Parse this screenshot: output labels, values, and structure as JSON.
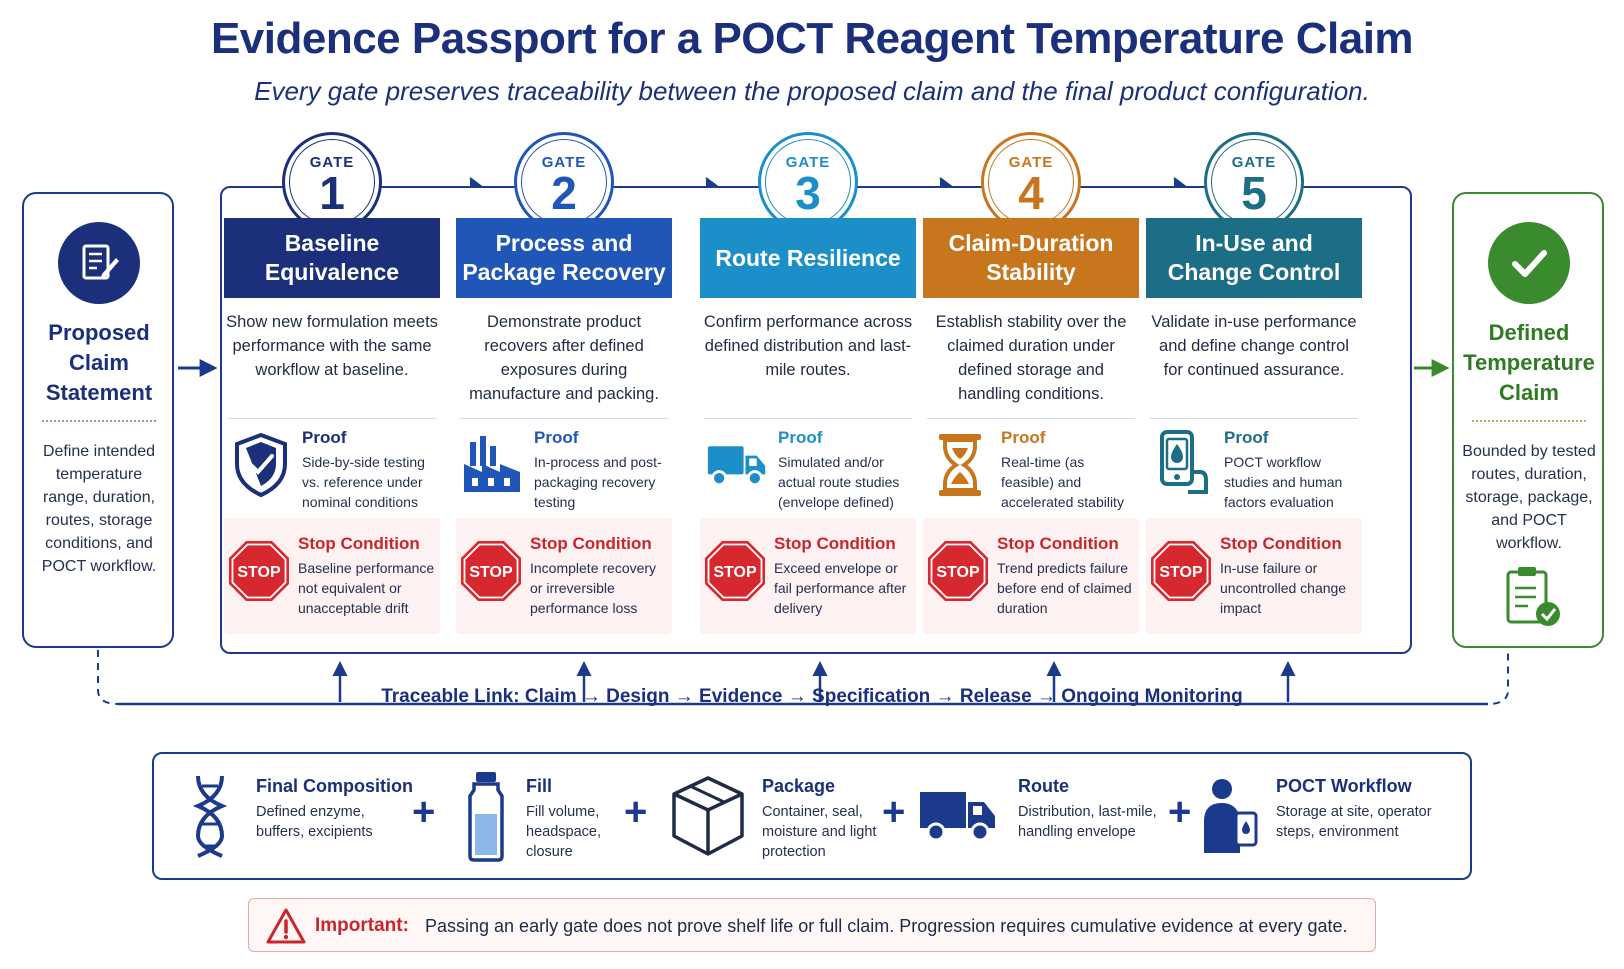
{
  "title": "Evidence Passport for a POCT Reagent Temperature Claim",
  "subtitle": "Every gate preserves traceability between the proposed claim and the final product configuration.",
  "claim": {
    "title": "Proposed Claim Statement",
    "description": "Define intended temperature range, duration, routes, storage conditions, and POCT workflow.",
    "icon": "document-edit-icon"
  },
  "gates": [
    {
      "word": "GATE",
      "number": "1",
      "color": "#1b2f7a",
      "badge_color": "#1b2f7a",
      "title": "Baseline Equivalence",
      "description": "Show new formulation meets performance with the same workflow at baseline.",
      "proof_label": "Proof",
      "proof": "Side-by-side testing vs. reference under nominal conditions",
      "proof_icon": "shield-check-icon",
      "stop_label": "Stop Condition",
      "stop": "Baseline performance not equivalent or unacceptable drift"
    },
    {
      "word": "GATE",
      "number": "2",
      "color": "#1f56b8",
      "badge_color": "#1f56b8",
      "title": "Process and Package Recovery",
      "description": "Demonstrate product recovers after defined exposures during manufacture and packing.",
      "proof_label": "Proof",
      "proof": "In-process and post-packaging recovery testing",
      "proof_icon": "factory-icon",
      "stop_label": "Stop Condition",
      "stop": "Incomplete recovery or irreversible performance loss"
    },
    {
      "word": "GATE",
      "number": "3",
      "color": "#1d8fc8",
      "badge_color": "#1d8fc8",
      "title": "Route Resilience",
      "description": "Confirm performance across defined distribution and last-mile routes.",
      "proof_label": "Proof",
      "proof": "Simulated and/or actual route studies (envelope defined)",
      "proof_icon": "truck-icon",
      "stop_label": "Stop Condition",
      "stop": "Exceed envelope or fail performance after delivery"
    },
    {
      "word": "GATE",
      "number": "4",
      "color": "#c8761d",
      "badge_color": "#c8761d",
      "title": "Claim-Duration Stability",
      "description": "Establish stability over the claimed duration under defined storage and handling conditions.",
      "proof_label": "Proof",
      "proof": "Real-time (as feasible) and accelerated stability program",
      "proof_icon": "hourglass-icon",
      "stop_label": "Stop Condition",
      "stop": "Trend predicts failure before end of claimed duration"
    },
    {
      "word": "GATE",
      "number": "5",
      "color": "#1c6e86",
      "badge_color": "#1c6e86",
      "title": "In-Use and Change Control",
      "description": "Validate in-use performance and define change control for continued assurance.",
      "proof_label": "Proof",
      "proof": "POCT workflow studies and human factors evaluation",
      "proof_icon": "poct-device-icon",
      "stop_label": "Stop Condition",
      "stop": "In-use failure or uncontrolled change impact"
    }
  ],
  "stop_sign_text": "STOP",
  "defined": {
    "title": "Defined Temperature Claim",
    "description": "Bounded by tested routes, duration, storage, package, and POCT workflow.",
    "icon": "check-circle-icon",
    "bottom_icon": "clipboard-check-icon"
  },
  "trace_link": "Traceable Link: Claim → Design → Evidence → Specification → Release → Ongoing Monitoring",
  "configuration": [
    {
      "title": "Final Composition",
      "text": "Defined enzyme, buffers, excipients",
      "icon": "dna-icon"
    },
    {
      "title": "Fill",
      "text": "Fill volume, headspace, closure",
      "icon": "vial-icon"
    },
    {
      "title": "Package",
      "text": "Container, seal, moisture and light protection",
      "icon": "box-icon"
    },
    {
      "title": "Route",
      "text": "Distribution, last-mile, handling envelope",
      "icon": "truck-icon"
    },
    {
      "title": "POCT Workflow",
      "text": "Storage at site, operator steps, environment",
      "icon": "operator-icon"
    }
  ],
  "plus_sign": "+",
  "important": {
    "label": "Important:",
    "text": "Passing an early gate does not prove shelf life or full claim. Progression requires cumulative evidence at every gate.",
    "icon": "warning-icon"
  },
  "colors": {
    "navy": "#1b2f7a",
    "green": "#3a8a2e",
    "stop_red": "#c8262c"
  }
}
